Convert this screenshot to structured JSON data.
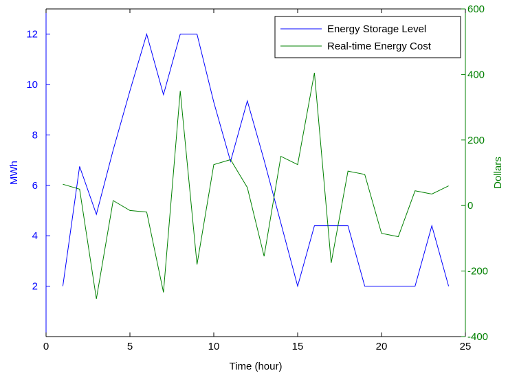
{
  "chart_data": {
    "type": "line",
    "xlabel": "Time (hour)",
    "ylabel_left": "MWh",
    "ylabel_right": "Dollars",
    "xlim": [
      0,
      25
    ],
    "ylim_left": [
      0,
      13
    ],
    "ylim_right": [
      -400,
      600
    ],
    "xticks": [
      0,
      5,
      10,
      15,
      20,
      25
    ],
    "yticks_left": [
      2,
      4,
      6,
      8,
      10,
      12
    ],
    "yticks_right": [
      -400,
      -200,
      0,
      200,
      400,
      600
    ],
    "grid": false,
    "legend_position": "top-right",
    "x": [
      1,
      2,
      3,
      4,
      5,
      6,
      7,
      8,
      9,
      10,
      11,
      12,
      13,
      14,
      15,
      16,
      17,
      18,
      19,
      20,
      21,
      22,
      23,
      24
    ],
    "series": [
      {
        "name": "Energy Storage Level",
        "axis": "left",
        "color": "#0000ff",
        "values": [
          2.0,
          6.75,
          4.85,
          7.4,
          9.75,
          12.0,
          9.6,
          12.0,
          12.0,
          9.3,
          6.95,
          9.35,
          7.0,
          4.5,
          2.0,
          4.4,
          4.4,
          4.4,
          2.0,
          2.0,
          2.0,
          2.0,
          4.4,
          2.0
        ]
      },
      {
        "name": "Real-time Energy Cost",
        "axis": "right",
        "color": "#008000",
        "values": [
          65,
          50,
          -285,
          15,
          -15,
          -20,
          -265,
          350,
          -180,
          125,
          140,
          55,
          -155,
          150,
          125,
          405,
          -175,
          105,
          95,
          -85,
          -95,
          45,
          35,
          60
        ]
      }
    ]
  },
  "colors": {
    "left_axis": "#0000ff",
    "right_axis": "#008000",
    "frame": "#000000"
  }
}
